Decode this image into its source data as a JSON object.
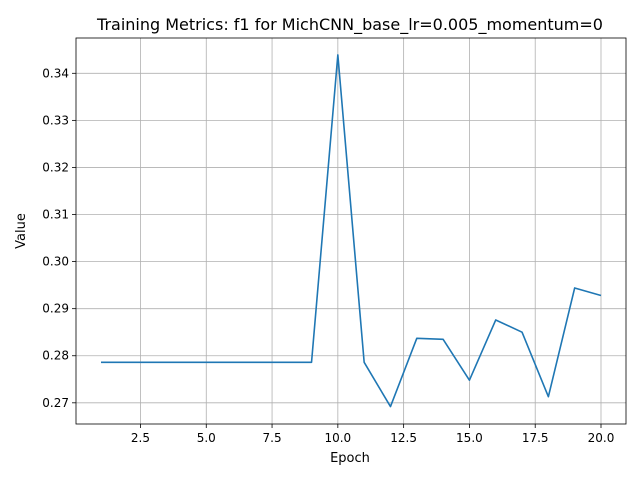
{
  "chart_data": {
    "type": "line",
    "title": "Training Metrics: f1 for MichCNN_base_lr=0.005_momentum=0",
    "xlabel": "Epoch",
    "ylabel": "Value",
    "xlim": [
      0.05,
      20.95
    ],
    "ylim": [
      0.2655,
      0.3475
    ],
    "xticks": [
      2.5,
      5.0,
      7.5,
      10.0,
      12.5,
      15.0,
      17.5,
      20.0
    ],
    "xtick_labels": [
      "2.5",
      "5.0",
      "7.5",
      "10.0",
      "12.5",
      "15.0",
      "17.5",
      "20.0"
    ],
    "yticks": [
      0.27,
      0.28,
      0.29,
      0.3,
      0.31,
      0.32,
      0.33,
      0.34
    ],
    "ytick_labels": [
      "0.27",
      "0.28",
      "0.29",
      "0.30",
      "0.31",
      "0.32",
      "0.33",
      "0.34"
    ],
    "grid": true,
    "series": [
      {
        "color": "#1f77b4",
        "x": [
          1,
          2,
          3,
          4,
          5,
          6,
          7,
          8,
          9,
          10,
          11,
          12,
          13,
          14,
          15,
          16,
          17,
          18,
          19,
          20
        ],
        "y": [
          0.2786,
          0.2786,
          0.2786,
          0.2786,
          0.2786,
          0.2786,
          0.2786,
          0.2786,
          0.2786,
          0.3439,
          0.2786,
          0.2692,
          0.2837,
          0.2835,
          0.2748,
          0.2876,
          0.285,
          0.2713,
          0.2944,
          0.2928
        ]
      }
    ]
  }
}
